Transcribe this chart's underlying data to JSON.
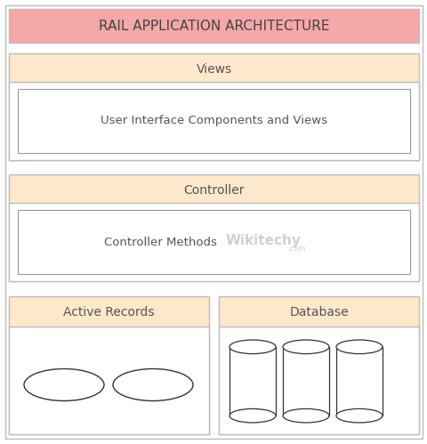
{
  "title": "RAIL APPLICATION ARCHITECTURE",
  "title_bg": "#f4a8a8",
  "title_text_color": "#444444",
  "section_bg": "#fde8cc",
  "inner_bg": "#ffffff",
  "outer_bg": "#ffffff",
  "border_color": "#bbbbbb",
  "text_color": "#555555",
  "views_label": "Views",
  "views_inner": "User Interface Components and Views",
  "controller_label": "Controller",
  "controller_inner": "Controller Methods",
  "active_records_label": "Active Records",
  "database_label": "Database",
  "watermark": "Wikitechy",
  "watermark_sub": ".com",
  "font_size_title": 11,
  "font_size_section": 10,
  "font_size_inner": 9.5,
  "fig_w": 4.81,
  "fig_h": 4.99,
  "dpi": 100
}
